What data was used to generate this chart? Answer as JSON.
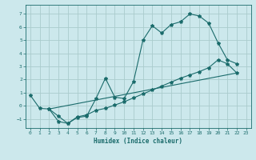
{
  "xlabel": "Humidex (Indice chaleur)",
  "bg_color": "#cce8ec",
  "grid_color": "#aacccc",
  "line_color": "#1a6b6b",
  "xlim": [
    -0.5,
    23.5
  ],
  "ylim": [
    -1.7,
    7.7
  ],
  "yticks": [
    -1,
    0,
    1,
    2,
    3,
    4,
    5,
    6,
    7
  ],
  "xticks": [
    0,
    1,
    2,
    3,
    4,
    5,
    6,
    7,
    8,
    9,
    10,
    11,
    12,
    13,
    14,
    15,
    16,
    17,
    18,
    19,
    20,
    21,
    22,
    23
  ],
  "line1_x": [
    0,
    1,
    2,
    3,
    4,
    5,
    6,
    7,
    8,
    9,
    10,
    11,
    12,
    13,
    14,
    15,
    16,
    17,
    18,
    19,
    20,
    21,
    22
  ],
  "line1_y": [
    0.8,
    -0.2,
    -0.25,
    -1.2,
    -1.35,
    -0.9,
    -0.8,
    0.55,
    2.1,
    0.65,
    0.55,
    1.85,
    5.0,
    6.1,
    5.55,
    6.2,
    6.4,
    7.0,
    6.85,
    6.3,
    4.8,
    3.5,
    3.2
  ],
  "line2_x": [
    2,
    3,
    4,
    5,
    6,
    7,
    8,
    9,
    10,
    11,
    12,
    13,
    14,
    15,
    16,
    17,
    18,
    19,
    20,
    21,
    22
  ],
  "line2_y": [
    -0.25,
    -0.8,
    -1.35,
    -0.85,
    -0.7,
    -0.35,
    -0.2,
    0.05,
    0.3,
    0.6,
    0.9,
    1.2,
    1.5,
    1.8,
    2.1,
    2.35,
    2.6,
    2.9,
    3.5,
    3.2,
    2.5
  ],
  "line3_x": [
    2,
    22
  ],
  "line3_y": [
    -0.25,
    2.5
  ]
}
